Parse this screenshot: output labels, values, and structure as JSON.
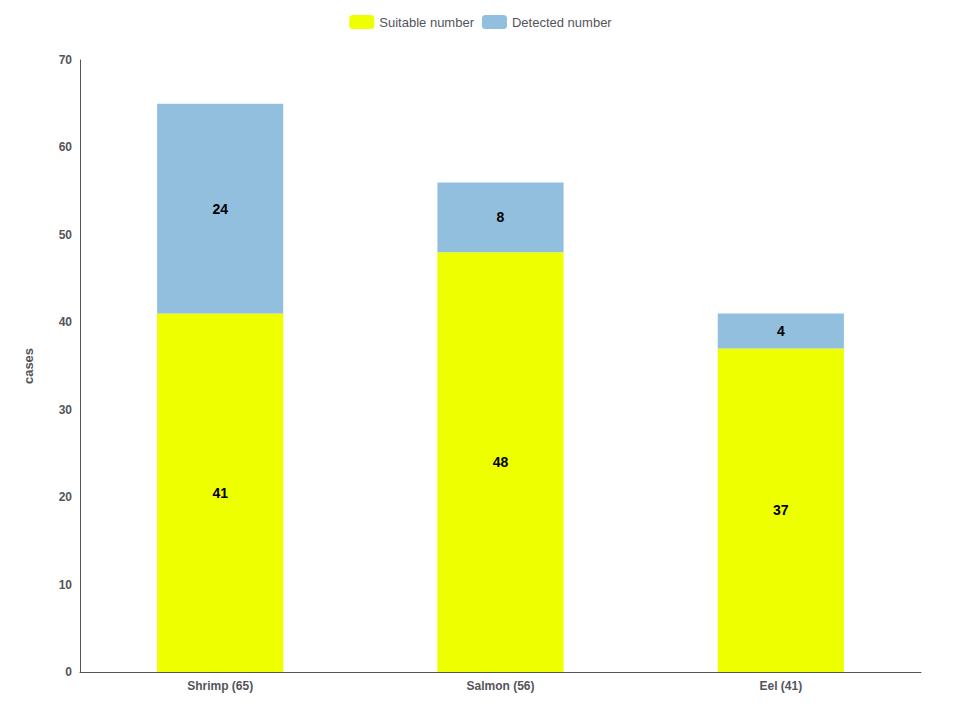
{
  "chart_data": {
    "type": "bar",
    "categories": [
      "Shrimp (65)",
      "Salmon (56)",
      "Eel (41)"
    ],
    "series": [
      {
        "name": "Suitable number",
        "color": "#EEFF00",
        "values": [
          41,
          48,
          37
        ]
      },
      {
        "name": "Detected number",
        "color": "#92BFDE",
        "values": [
          24,
          8,
          4
        ]
      }
    ],
    "ylabel": "cases",
    "ylim": [
      0,
      70
    ],
    "yticks": [
      0,
      10,
      20,
      30,
      40,
      50,
      60,
      70
    ],
    "stacked": true,
    "data_labels": true,
    "grid": false,
    "legend": "top"
  }
}
